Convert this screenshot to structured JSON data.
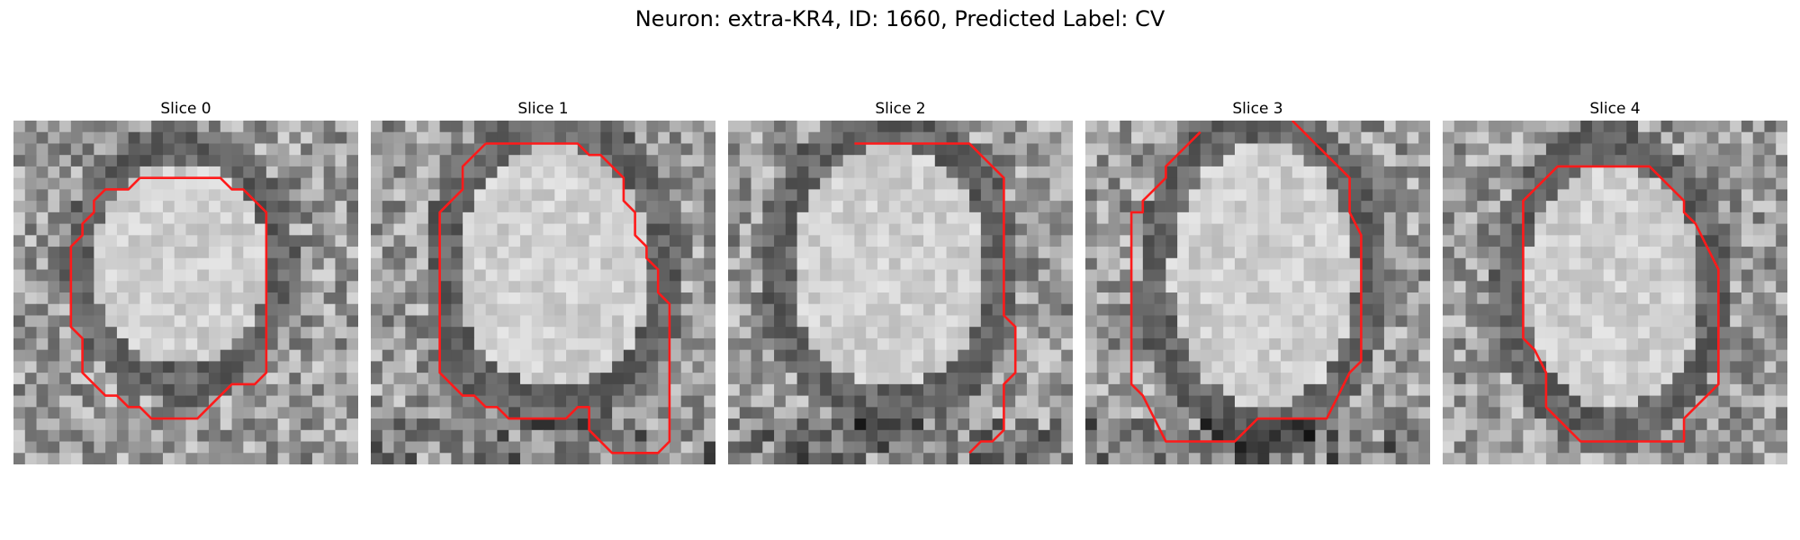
{
  "figure": {
    "title": "Neuron: extra-KR4, ID: 1660, Predicted Label: CV"
  },
  "panels": [
    {
      "title": "Slice 0"
    },
    {
      "title": "Slice 1"
    },
    {
      "title": "Slice 2"
    },
    {
      "title": "Slice 3"
    },
    {
      "title": "Slice 4"
    }
  ],
  "colors": {
    "contour": "#ff1a1a",
    "background": "#ffffff"
  }
}
